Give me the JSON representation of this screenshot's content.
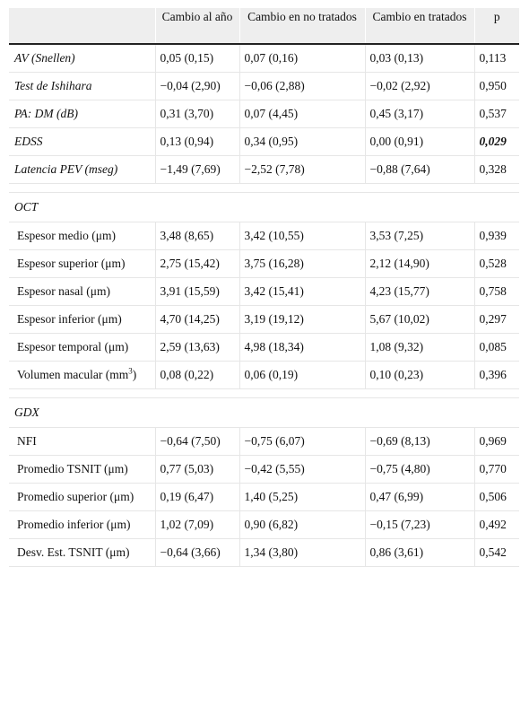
{
  "table": {
    "headers": [
      "",
      "Cambio al año",
      "Cambio en no tratados",
      "Cambio en tratados",
      "p"
    ],
    "rows": [
      {
        "type": "data",
        "italic": true,
        "indent": false,
        "label": "AV (Snellen)",
        "cells": [
          "0,05 (0,15)",
          "0,07 (0,16)",
          "0,03 (0,13)",
          "0,113"
        ],
        "p_emphasis": false
      },
      {
        "type": "data",
        "italic": true,
        "indent": false,
        "label": "Test de Ishihara",
        "cells": [
          "−0,04 (2,90)",
          "−0,06 (2,88)",
          "−0,02 (2,92)",
          "0,950"
        ],
        "p_emphasis": false
      },
      {
        "type": "data",
        "italic": true,
        "indent": false,
        "label": "PA: DM (dB)",
        "cells": [
          "0,31 (3,70)",
          "0,07 (4,45)",
          "0,45 (3,17)",
          "0,537"
        ],
        "p_emphasis": false
      },
      {
        "type": "data",
        "italic": true,
        "indent": false,
        "label": "EDSS",
        "cells": [
          "0,13 (0,94)",
          "0,34 (0,95)",
          "0,00 (0,91)",
          "0,029"
        ],
        "p_emphasis": true
      },
      {
        "type": "data",
        "italic": true,
        "indent": false,
        "label": "Latencia PEV (mseg)",
        "cells": [
          "−1,49 (7,69)",
          "−2,52 (7,78)",
          "−0,88 (7,64)",
          "0,328"
        ],
        "p_emphasis": false
      },
      {
        "type": "spacer"
      },
      {
        "type": "section",
        "label": "OCT"
      },
      {
        "type": "data",
        "italic": false,
        "indent": true,
        "label": "Espesor medio (μm)",
        "cells": [
          "3,48 (8,65)",
          "3,42 (10,55)",
          "3,53 (7,25)",
          "0,939"
        ],
        "p_emphasis": false
      },
      {
        "type": "data",
        "italic": false,
        "indent": true,
        "label": "Espesor superior (μm)",
        "cells": [
          "2,75 (15,42)",
          "3,75 (16,28)",
          "2,12 (14,90)",
          "0,528"
        ],
        "p_emphasis": false
      },
      {
        "type": "data",
        "italic": false,
        "indent": true,
        "label": "Espesor nasal (μm)",
        "cells": [
          "3,91 (15,59)",
          "3,42 (15,41)",
          "4,23 (15,77)",
          "0,758"
        ],
        "p_emphasis": false
      },
      {
        "type": "data",
        "italic": false,
        "indent": true,
        "label": "Espesor inferior (μm)",
        "cells": [
          "4,70 (14,25)",
          "3,19 (19,12)",
          "5,67 (10,02)",
          "0,297"
        ],
        "p_emphasis": false
      },
      {
        "type": "data",
        "italic": false,
        "indent": true,
        "label": "Espesor temporal (μm)",
        "cells": [
          "2,59 (13,63)",
          "4,98 (18,34)",
          "1,08 (9,32)",
          "0,085"
        ],
        "p_emphasis": false
      },
      {
        "type": "data",
        "italic": false,
        "indent": true,
        "label": "Volumen macular (mm",
        "label_sup": "3",
        "label_after": ")",
        "cells": [
          "0,08 (0,22)",
          "0,06 (0,19)",
          "0,10 (0,23)",
          "0,396"
        ],
        "p_emphasis": false
      },
      {
        "type": "spacer"
      },
      {
        "type": "section",
        "label": "GDX"
      },
      {
        "type": "data",
        "italic": false,
        "indent": true,
        "label": "NFI",
        "cells": [
          "−0,64 (7,50)",
          "−0,75 (6,07)",
          "−0,69 (8,13)",
          "0,969"
        ],
        "p_emphasis": false
      },
      {
        "type": "data",
        "italic": false,
        "indent": true,
        "label": "Promedio TSNIT (μm)",
        "cells": [
          "0,77 (5,03)",
          "−0,42 (5,55)",
          "−0,75 (4,80)",
          "0,770"
        ],
        "p_emphasis": false
      },
      {
        "type": "data",
        "italic": false,
        "indent": true,
        "label": "Promedio superior (μm)",
        "cells": [
          "0,19 (6,47)",
          "1,40 (5,25)",
          "0,47 (6,99)",
          "0,506"
        ],
        "p_emphasis": false
      },
      {
        "type": "data",
        "italic": false,
        "indent": true,
        "label": "Promedio inferior (μm)",
        "cells": [
          "1,02 (7,09)",
          "0,90 (6,82)",
          "−0,15 (7,23)",
          "0,492"
        ],
        "p_emphasis": false
      },
      {
        "type": "data",
        "italic": false,
        "indent": true,
        "label": "Desv. Est. TSNIT (μm)",
        "cells": [
          "−0,64 (3,66)",
          "1,34 (3,80)",
          "0,86 (3,61)",
          "0,542"
        ],
        "p_emphasis": false
      }
    ]
  }
}
